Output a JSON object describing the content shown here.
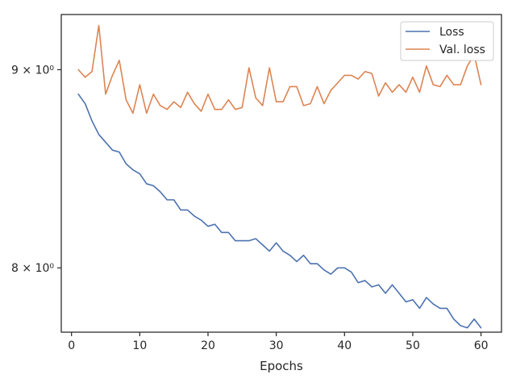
{
  "chart_data": {
    "type": "line",
    "title": "",
    "xlabel": "Epochs",
    "ylabel": "",
    "xlim": [
      -1.5,
      63
    ],
    "ylim": [
      7.7,
      9.3
    ],
    "yscale": "log",
    "xticks": [
      0,
      10,
      20,
      30,
      40,
      50,
      60
    ],
    "xtick_labels": [
      "0",
      "10",
      "20",
      "30",
      "40",
      "50",
      "60"
    ],
    "yticks": [
      8,
      9
    ],
    "ytick_labels": [
      "8 × 10⁰",
      "9 × 10⁰"
    ],
    "grid": false,
    "legend_position": "top-right",
    "x": [
      1,
      2,
      3,
      4,
      5,
      6,
      7,
      8,
      9,
      10,
      11,
      12,
      13,
      14,
      15,
      16,
      17,
      18,
      19,
      20,
      21,
      22,
      23,
      24,
      25,
      26,
      27,
      28,
      29,
      30,
      31,
      32,
      33,
      34,
      35,
      36,
      37,
      38,
      39,
      40,
      41,
      42,
      43,
      44,
      45,
      46,
      47,
      48,
      49,
      50,
      51,
      52,
      53,
      54,
      55,
      56,
      57,
      58,
      59,
      60
    ],
    "series": [
      {
        "name": "Loss",
        "color": "#4c72b0",
        "values": [
          8.87,
          8.82,
          8.73,
          8.66,
          8.62,
          8.58,
          8.57,
          8.51,
          8.48,
          8.46,
          8.41,
          8.4,
          8.37,
          8.33,
          8.33,
          8.28,
          8.28,
          8.25,
          8.23,
          8.2,
          8.21,
          8.17,
          8.17,
          8.13,
          8.13,
          8.13,
          8.14,
          8.11,
          8.08,
          8.12,
          8.08,
          8.06,
          8.03,
          8.06,
          8.02,
          8.02,
          7.99,
          7.97,
          8.0,
          8.0,
          7.98,
          7.93,
          7.94,
          7.91,
          7.92,
          7.88,
          7.92,
          7.88,
          7.84,
          7.85,
          7.81,
          7.86,
          7.83,
          7.81,
          7.81,
          7.76,
          7.73,
          7.72,
          7.76,
          7.72
        ]
      },
      {
        "name": "Val. loss",
        "color": "#dd8452",
        "values": [
          9.0,
          8.96,
          8.99,
          9.24,
          8.87,
          8.97,
          9.05,
          8.84,
          8.77,
          8.92,
          8.77,
          8.87,
          8.81,
          8.79,
          8.83,
          8.8,
          8.88,
          8.82,
          8.78,
          8.87,
          8.79,
          8.79,
          8.84,
          8.79,
          8.8,
          9.01,
          8.85,
          8.81,
          9.01,
          8.83,
          8.83,
          8.91,
          8.91,
          8.81,
          8.82,
          8.91,
          8.82,
          8.89,
          8.93,
          8.97,
          8.97,
          8.95,
          8.99,
          8.98,
          8.86,
          8.93,
          8.88,
          8.92,
          8.88,
          8.96,
          8.88,
          9.02,
          8.92,
          8.91,
          8.97,
          8.92,
          8.92,
          9.02,
          9.08,
          8.92
        ]
      }
    ]
  }
}
